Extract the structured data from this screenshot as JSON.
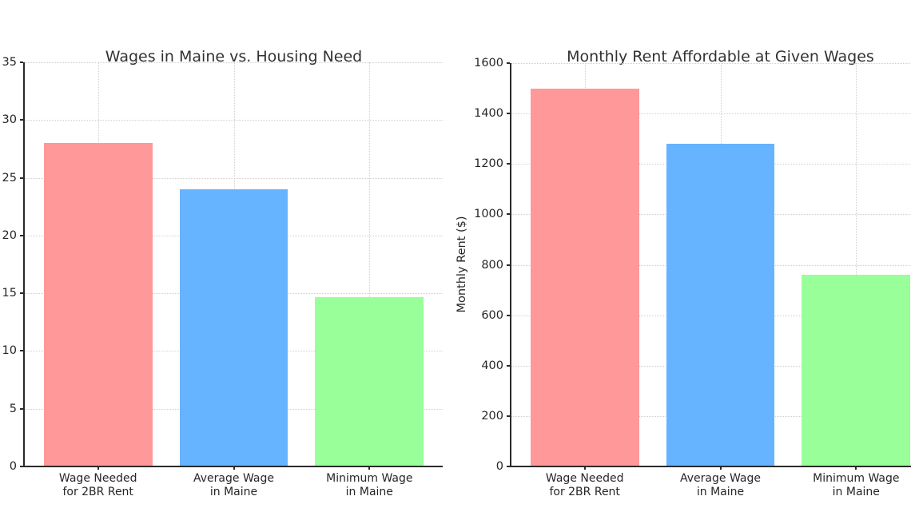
{
  "chart_data": [
    {
      "type": "bar",
      "title": "Wages in Maine vs. Housing Need",
      "xlabel": "",
      "ylabel": "",
      "categories": [
        "Wage Needed\nfor 2BR Rent",
        "Average Wage\nin Maine",
        "Minimum Wage\nin Maine"
      ],
      "values": [
        28,
        24,
        14.65
      ],
      "bar_colors": [
        "#ff9999",
        "#66b3ff",
        "#99ff99"
      ],
      "ylim": [
        0,
        35
      ],
      "yticks": [
        0,
        5,
        10,
        15,
        20,
        25,
        30,
        35
      ],
      "grid": true,
      "legend": null
    },
    {
      "type": "bar",
      "title": "Monthly Rent Affordable at Given Wages",
      "xlabel": "",
      "ylabel": "Monthly Rent ($)",
      "categories": [
        "Wage Needed\nfor 2BR Rent",
        "Average Wage\nin Maine",
        "Minimum Wage\nin Maine"
      ],
      "values": [
        1500,
        1280,
        760
      ],
      "bar_colors": [
        "#ff9999",
        "#66b3ff",
        "#99ff99"
      ],
      "ylim": [
        0,
        1600
      ],
      "yticks": [
        0,
        200,
        400,
        600,
        800,
        1000,
        1200,
        1400,
        1600
      ],
      "grid": true,
      "legend": null
    }
  ]
}
